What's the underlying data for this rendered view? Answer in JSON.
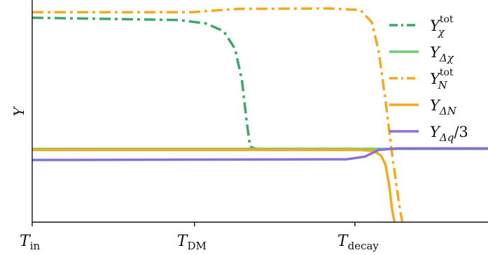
{
  "chart_data": {
    "type": "line",
    "title": "",
    "ylabel": "Y",
    "xlabel": "",
    "x_axis": {
      "scale": "log",
      "range": [
        0,
        1
      ],
      "ticks": [
        {
          "base": "T",
          "sub": "in",
          "x": 0.0
        },
        {
          "base": "T",
          "sub": "DM",
          "x": 0.356
        },
        {
          "base": "T",
          "sub": "decay",
          "x": 0.708
        }
      ]
    },
    "y_axis": {
      "range": [
        0,
        1
      ],
      "ticks_shown": false
    },
    "grid": false,
    "legend_position": "top-right",
    "series": [
      {
        "key": "Ychi_tot",
        "legend_base": "Y",
        "legend_sup": "tot",
        "legend_sub": "χ",
        "color": "#3aa86a",
        "dash": "dashdot",
        "width": 3.5,
        "points": [
          [
            0.0,
            0.92
          ],
          [
            0.32,
            0.91
          ],
          [
            0.38,
            0.895
          ],
          [
            0.42,
            0.86
          ],
          [
            0.445,
            0.78
          ],
          [
            0.46,
            0.64
          ],
          [
            0.47,
            0.46
          ],
          [
            0.478,
            0.34
          ],
          [
            0.49,
            0.33
          ],
          [
            1.0,
            0.33
          ]
        ]
      },
      {
        "key": "Ydelta_chi",
        "legend_base": "Y",
        "legend_sub": "Δχ",
        "color": "#6fcf70",
        "dash": "solid",
        "width": 3.5,
        "points": [
          [
            0.0,
            0.33
          ],
          [
            1.0,
            0.33
          ]
        ]
      },
      {
        "key": "YN_tot",
        "legend_base": "Y",
        "legend_sup": "tot",
        "legend_sub": "N",
        "color": "#f5a91e",
        "dash": "dashdot",
        "width": 3.5,
        "points": [
          [
            0.0,
            0.945
          ],
          [
            0.35,
            0.945
          ],
          [
            0.45,
            0.96
          ],
          [
            0.65,
            0.962
          ],
          [
            0.72,
            0.955
          ],
          [
            0.745,
            0.9
          ],
          [
            0.76,
            0.77
          ],
          [
            0.775,
            0.55
          ],
          [
            0.79,
            0.3
          ],
          [
            0.805,
            0.08
          ],
          [
            0.812,
            0.0
          ]
        ]
      },
      {
        "key": "Ydelta_N",
        "legend_base": "Y",
        "legend_sub": "ΔN",
        "color": "#f5a91e",
        "dash": "solid",
        "width": 3.5,
        "points": [
          [
            0.0,
            0.325
          ],
          [
            0.72,
            0.325
          ],
          [
            0.75,
            0.32
          ],
          [
            0.765,
            0.3
          ],
          [
            0.775,
            0.26
          ],
          [
            0.783,
            0.17
          ],
          [
            0.79,
            0.05
          ],
          [
            0.795,
            0.0
          ]
        ]
      },
      {
        "key": "Ydelta_q",
        "legend_base": "Y",
        "legend_sub": "Δq",
        "legend_suffix": "/3",
        "color": "#8b6fd6",
        "dash": "solid",
        "width": 3.5,
        "points": [
          [
            0.0,
            0.28
          ],
          [
            0.69,
            0.283
          ],
          [
            0.73,
            0.295
          ],
          [
            0.76,
            0.325
          ],
          [
            0.8,
            0.332
          ],
          [
            1.0,
            0.332
          ]
        ]
      }
    ]
  }
}
